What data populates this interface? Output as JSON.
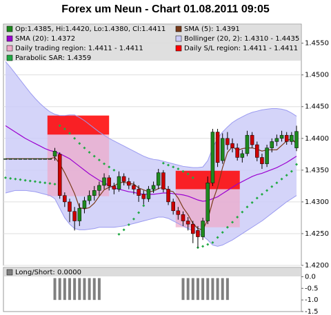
{
  "chart_data": [
    {
      "type": "candlestick",
      "title": "Forex um Neun - Chart 01.08.2011 09:05",
      "ylim": [
        1.42,
        1.458
      ],
      "yticks": [
        {
          "value": 1.42,
          "label": "1.4200"
        },
        {
          "value": 1.425,
          "label": "1.4250"
        },
        {
          "value": 1.43,
          "label": "1.4300"
        },
        {
          "value": 1.435,
          "label": "1.4350"
        },
        {
          "value": 1.44,
          "label": "1.4400"
        },
        {
          "value": 1.445,
          "label": "1.4450"
        },
        {
          "value": 1.45,
          "label": "1.4500"
        },
        {
          "value": 1.455,
          "label": "1.4550"
        }
      ],
      "grid": true,
      "candles": {
        "name": "Op:1.4385, Hi:1.4420, Lo:1.4380, Cl:1.4411",
        "up_color": "#1e8a1e",
        "down_color": "#cc0000",
        "open": [
          1.4368,
          1.4368,
          1.4368,
          1.4368,
          1.4368,
          1.4368,
          1.4368,
          1.4368,
          1.4368,
          1.4368,
          1.4372,
          1.4375,
          1.431,
          1.43,
          1.4285,
          1.427,
          1.429,
          1.4302,
          1.431,
          1.4318,
          1.4326,
          1.4338,
          1.4325,
          1.432,
          1.434,
          1.4332,
          1.4326,
          1.432,
          1.4312,
          1.4305,
          1.432,
          1.4326,
          1.4346,
          1.432,
          1.43,
          1.4286,
          1.428,
          1.427,
          1.4265,
          1.4255,
          1.4245,
          1.427,
          1.433,
          1.441,
          1.4365,
          1.44,
          1.4392,
          1.4385,
          1.437,
          1.4376,
          1.4405,
          1.439,
          1.437,
          1.436,
          1.4385,
          1.4395,
          1.44,
          1.4405,
          1.4395,
          1.4385
        ],
        "high": [
          1.4368,
          1.4368,
          1.4368,
          1.4368,
          1.4368,
          1.4368,
          1.4368,
          1.4368,
          1.4368,
          1.4368,
          1.4385,
          1.4378,
          1.4315,
          1.4305,
          1.4292,
          1.4298,
          1.4308,
          1.4318,
          1.4325,
          1.4332,
          1.4345,
          1.4342,
          1.433,
          1.4348,
          1.4345,
          1.4338,
          1.4332,
          1.4326,
          1.4318,
          1.4325,
          1.4332,
          1.4352,
          1.435,
          1.4325,
          1.4305,
          1.4292,
          1.4285,
          1.4276,
          1.427,
          1.4262,
          1.4275,
          1.434,
          1.4415,
          1.4415,
          1.4408,
          1.441,
          1.44,
          1.4392,
          1.4382,
          1.4412,
          1.441,
          1.4395,
          1.4376,
          1.439,
          1.44,
          1.4406,
          1.4412,
          1.441,
          1.441,
          1.442
        ],
        "low": [
          1.4368,
          1.4368,
          1.4368,
          1.4368,
          1.4368,
          1.4368,
          1.4368,
          1.4368,
          1.4368,
          1.4368,
          1.4365,
          1.4305,
          1.4292,
          1.4268,
          1.4255,
          1.4262,
          1.4282,
          1.4296,
          1.4302,
          1.431,
          1.432,
          1.4318,
          1.4312,
          1.4316,
          1.4326,
          1.432,
          1.4312,
          1.43,
          1.4296,
          1.43,
          1.4314,
          1.432,
          1.4315,
          1.4295,
          1.428,
          1.4272,
          1.4262,
          1.4255,
          1.4235,
          1.4228,
          1.424,
          1.4265,
          1.4325,
          1.4355,
          1.436,
          1.4382,
          1.4378,
          1.4365,
          1.4362,
          1.4372,
          1.4385,
          1.4364,
          1.4352,
          1.4355,
          1.4378,
          1.4388,
          1.4395,
          1.439,
          1.439,
          1.438
        ],
        "close": [
          1.4368,
          1.4368,
          1.4368,
          1.4368,
          1.4368,
          1.4368,
          1.4368,
          1.4368,
          1.4368,
          1.4368,
          1.438,
          1.431,
          1.43,
          1.4285,
          1.427,
          1.429,
          1.4302,
          1.431,
          1.4318,
          1.4326,
          1.4338,
          1.4325,
          1.432,
          1.434,
          1.4332,
          1.4326,
          1.432,
          1.431,
          1.4305,
          1.432,
          1.4326,
          1.4346,
          1.432,
          1.43,
          1.4286,
          1.428,
          1.427,
          1.4265,
          1.425,
          1.4245,
          1.427,
          1.433,
          1.441,
          1.4362,
          1.44,
          1.439,
          1.4385,
          1.437,
          1.4376,
          1.4405,
          1.439,
          1.437,
          1.436,
          1.4385,
          1.4395,
          1.44,
          1.4405,
          1.4395,
          1.4405,
          1.4411
        ]
      },
      "sma5": {
        "name": "SMA (5): 1.4391",
        "color": "#7a3b1a",
        "values": [
          1.4368,
          1.4368,
          1.4368,
          1.4368,
          1.4368,
          1.4368,
          1.4368,
          1.4368,
          1.4368,
          1.4368,
          1.437,
          1.436,
          1.4346,
          1.433,
          1.4313,
          1.4291,
          1.4289,
          1.4291,
          1.4298,
          1.4309,
          1.4319,
          1.4323,
          1.4325,
          1.433,
          1.4331,
          1.4329,
          1.4328,
          1.4322,
          1.4319,
          1.4316,
          1.4317,
          1.4321,
          1.4323,
          1.4318,
          1.4316,
          1.4306,
          1.4291,
          1.428,
          1.4266,
          1.4258,
          1.4256,
          1.4272,
          1.4301,
          1.4323,
          1.4354,
          1.4378,
          1.4387,
          1.4381,
          1.4384,
          1.4385,
          1.4385,
          1.4383,
          1.438,
          1.4382,
          1.4382,
          1.4382,
          1.4389,
          1.4396,
          1.44,
          1.4391
        ]
      },
      "sma20": {
        "name": "SMA (20): 1.4372",
        "color": "#9b00d0",
        "values": [
          1.442,
          1.4415,
          1.441,
          1.4405,
          1.44,
          1.4396,
          1.4392,
          1.4388,
          1.4384,
          1.4381,
          1.4379,
          1.4376,
          1.4372,
          1.4368,
          1.4362,
          1.4356,
          1.435,
          1.4344,
          1.4339,
          1.4334,
          1.433,
          1.4326,
          1.4322,
          1.432,
          1.4318,
          1.4316,
          1.4315,
          1.4313,
          1.4312,
          1.4312,
          1.4312,
          1.4313,
          1.4314,
          1.4314,
          1.4313,
          1.4312,
          1.4311,
          1.4309,
          1.4306,
          1.4303,
          1.4301,
          1.4302,
          1.4305,
          1.4308,
          1.4313,
          1.4318,
          1.4323,
          1.4328,
          1.4332,
          1.4336,
          1.434,
          1.4343,
          1.4345,
          1.4348,
          1.4351,
          1.4354,
          1.4358,
          1.4362,
          1.4367,
          1.4372
        ]
      },
      "bollinger": {
        "name": "Bollinger (20, 2): 1.4310 - 1.4435",
        "color": "#9a9af0",
        "fill": "#ccccf8",
        "upper": [
          1.4521,
          1.4512,
          1.4502,
          1.4492,
          1.4482,
          1.4472,
          1.4463,
          1.4455,
          1.4448,
          1.4442,
          1.4438,
          1.4436,
          1.4436,
          1.4437,
          1.4437,
          1.4433,
          1.4428,
          1.4422,
          1.4416,
          1.441,
          1.4405,
          1.44,
          1.4396,
          1.4392,
          1.4388,
          1.4384,
          1.438,
          1.4376,
          1.4372,
          1.4369,
          1.4367,
          1.4366,
          1.4364,
          1.4362,
          1.436,
          1.4358,
          1.4356,
          1.4355,
          1.4354,
          1.4354,
          1.4355,
          1.4365,
          1.4385,
          1.44,
          1.441,
          1.4418,
          1.4425,
          1.443,
          1.4434,
          1.4438,
          1.4441,
          1.4443,
          1.4445,
          1.4446,
          1.4447,
          1.4447,
          1.4446,
          1.4444,
          1.444,
          1.4435
        ],
        "lower": [
          1.4314,
          1.4316,
          1.4318,
          1.4318,
          1.4318,
          1.4317,
          1.4316,
          1.4314,
          1.4312,
          1.431,
          1.4305,
          1.429,
          1.4275,
          1.4265,
          1.4258,
          1.4256,
          1.4256,
          1.4257,
          1.4258,
          1.426,
          1.426,
          1.426,
          1.426,
          1.4261,
          1.4262,
          1.4264,
          1.4266,
          1.4268,
          1.427,
          1.4272,
          1.4274,
          1.4276,
          1.4276,
          1.4274,
          1.427,
          1.4266,
          1.4262,
          1.4258,
          1.4254,
          1.425,
          1.4246,
          1.424,
          1.4232,
          1.423,
          1.4232,
          1.4236,
          1.424,
          1.4245,
          1.425,
          1.4255,
          1.426,
          1.4265,
          1.427,
          1.4276,
          1.4282,
          1.4288,
          1.4294,
          1.43,
          1.4305,
          1.431
        ]
      },
      "trading_region": {
        "name": "Daily trading region: 1.4411 - 1.4411",
        "color": "#f0a8c8",
        "bands": [
          {
            "from": 8.5,
            "to": 21,
            "low": 1.4309,
            "high": 1.4406
          },
          {
            "from": 34.5,
            "to": 47.5,
            "low": 1.426,
            "high": 1.432
          }
        ]
      },
      "sl_region": {
        "name": "Daily S/L region: 1.4411 - 1.4411",
        "color": "#ff0000",
        "bands": [
          {
            "from": 8.5,
            "to": 21,
            "low": 1.4406,
            "high": 1.4436
          },
          {
            "from": 34.5,
            "to": 47.5,
            "low": 1.432,
            "high": 1.4349
          }
        ]
      },
      "sar": {
        "name": "Parabolic SAR: 1.4359",
        "color": "#22aa44",
        "values": [
          1.4338,
          1.4337,
          1.4336,
          1.4335,
          1.4334,
          1.4333,
          1.4332,
          1.4331,
          1.433,
          1.4329,
          1.4328,
          1.442,
          1.4415,
          1.4408,
          1.44,
          1.4392,
          1.4385,
          1.4378,
          1.4372,
          1.4366,
          1.436,
          1.4355,
          1.435,
          1.4249,
          1.4256,
          1.4264,
          1.4273,
          1.4283,
          1.4294,
          1.4305,
          1.4318,
          1.4332,
          1.4361,
          1.4358,
          1.4355,
          1.4352,
          1.4348,
          1.4344,
          1.4338,
          1.4228,
          1.423,
          1.4233,
          1.4236,
          1.4244,
          1.4252,
          1.426,
          1.4268,
          1.4276,
          1.4284,
          1.4292,
          1.4299,
          1.4306,
          1.4312,
          1.4318,
          1.4324,
          1.433,
          1.4336,
          1.4342,
          1.4348,
          1.4359
        ]
      }
    },
    {
      "type": "bar",
      "name": "Long/Short: 0.0000",
      "color": "#808080",
      "ylim": [
        -1.5,
        0.4
      ],
      "yticks": [
        {
          "value": 0,
          "label": "0.0"
        },
        -0.5,
        {
          "value": -1,
          "label": "-1.0"
        },
        -1.5
      ],
      "values": [
        0,
        0,
        0,
        0,
        0,
        0,
        0,
        0,
        0,
        0,
        -1,
        -1,
        -1,
        -1,
        -1,
        -1,
        -1,
        -1,
        -1,
        -1,
        0,
        0,
        0,
        0,
        0,
        0,
        0,
        0,
        0,
        0,
        0,
        0,
        0,
        0,
        0,
        0,
        -1,
        -1,
        -1,
        -1,
        -1,
        -1,
        -1,
        -1,
        -1,
        -1,
        0,
        0,
        0,
        0,
        0,
        0,
        0,
        0,
        0,
        0,
        0,
        0,
        0,
        0
      ]
    }
  ]
}
